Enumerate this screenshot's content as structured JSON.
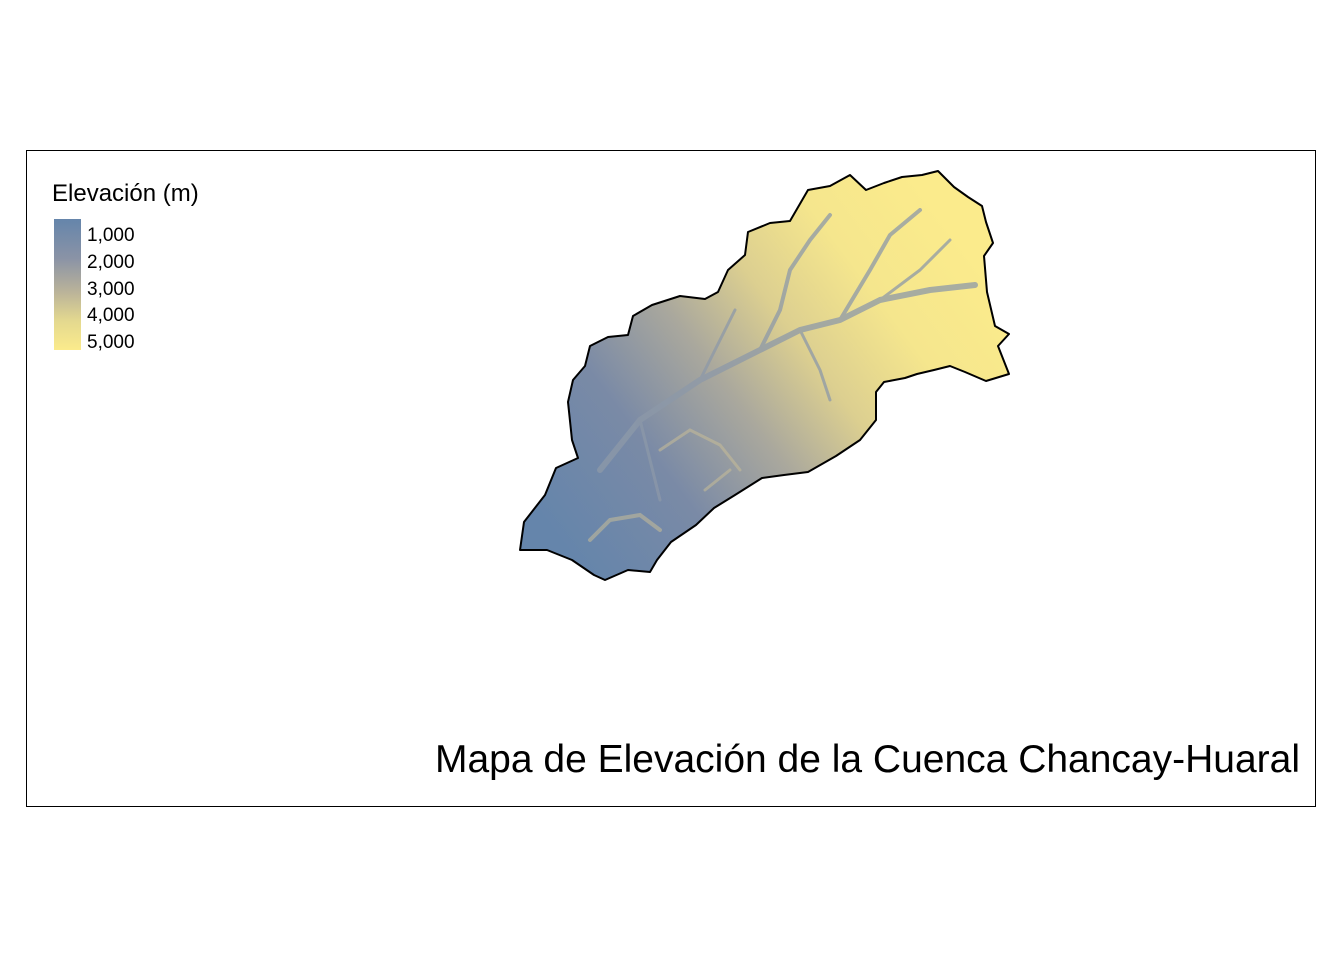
{
  "map": {
    "title": "Mapa de Elevación de la Cuenca Chancay-Huaral",
    "legend": {
      "title": "Elevación (m)",
      "ticks": [
        "1,000",
        "2,000",
        "3,000",
        "4,000",
        "5,000"
      ],
      "color_low": "#6585ab",
      "color_high": "#fbeb8c"
    },
    "basin_outline_color": "#000000"
  }
}
